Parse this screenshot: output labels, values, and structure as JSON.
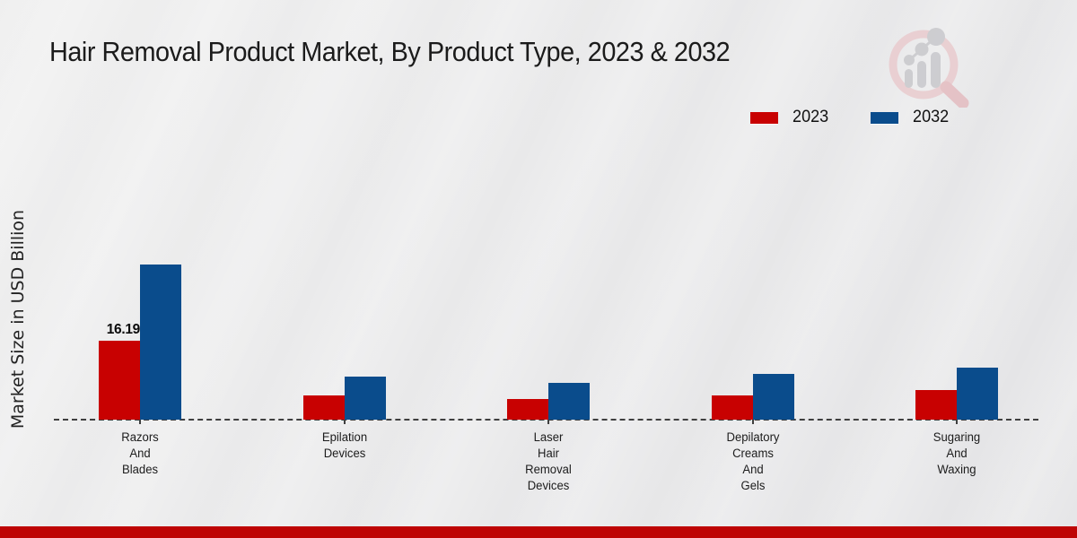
{
  "title": "Hair Removal Product Market, By Product Type, 2023 & 2032",
  "y_axis_label": "Market Size in USD Billion",
  "colors": {
    "series_2023": "#C80101",
    "series_2032": "#0A4C8C",
    "footer": "#BE0404",
    "axis": "#3F3F3F",
    "logo_ring": "#E9CBCE",
    "logo_glyph": "#C8C8CC"
  },
  "logo": {
    "name": "market-research-future-logo"
  },
  "chart_data": {
    "type": "bar",
    "title": "Hair Removal Product Market, By Product Type, 2023 & 2032",
    "xlabel": "",
    "ylabel": "Market Size in USD Billion",
    "ylim": [
      0,
      35
    ],
    "grid": false,
    "legend_position": "top-right",
    "baseline": "dashed",
    "categories": [
      "Razors And Blades",
      "Epilation Devices",
      "Laser Hair Removal Devices",
      "Depilatory Creams And Gels",
      "Sugaring And Waxing"
    ],
    "series": [
      {
        "name": "2023",
        "color": "#C80101",
        "values": [
          16.19,
          5.0,
          4.2,
          5.0,
          6.1
        ]
      },
      {
        "name": "2032",
        "color": "#0A4C8C",
        "values": [
          31.8,
          8.8,
          7.5,
          9.4,
          10.7
        ]
      }
    ],
    "data_labels": [
      {
        "series_index": 0,
        "category_index": 0,
        "label": "16.19"
      }
    ]
  }
}
